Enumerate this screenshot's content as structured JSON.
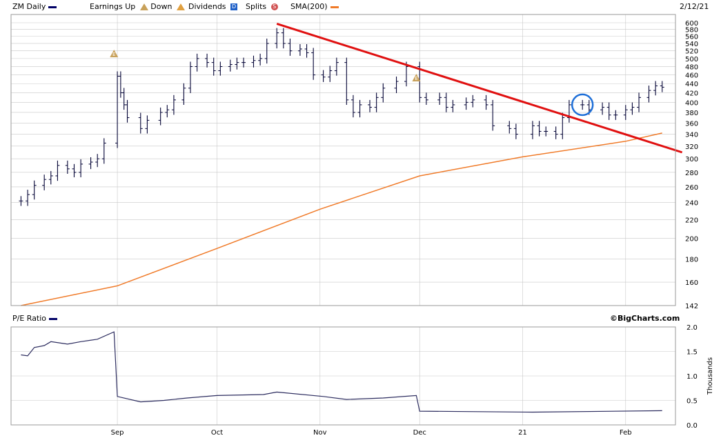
{
  "header": {
    "ticker_label": "ZM Daily",
    "earnings_up_label": "Earnings Up",
    "down_label": "Down",
    "dividends_label": "Dividends",
    "splits_label": "Splits",
    "sma_label": "SMA(200)",
    "date": "2/12/21",
    "earnings_badge": "E",
    "dividend_badge": "D",
    "split_badge": "S"
  },
  "colors": {
    "price_bars": "#000033",
    "sma": "#f07a28",
    "trendline": "#e01010",
    "circle": "#1e6fd8",
    "pe_line": "#2b2b5e",
    "grid": "#c8c8c8",
    "earnings_marker": "#c8a15a"
  },
  "chart_data": [
    {
      "type": "bar",
      "title": "ZM Daily",
      "y_scale": "log",
      "ylim": [
        142,
        600
      ],
      "y_ticks": [
        "600",
        "580",
        "560",
        "540",
        "520",
        "500",
        "480",
        "460",
        "440",
        "420",
        "400",
        "380",
        "360",
        "340",
        "320",
        "300",
        "280",
        "260",
        "240",
        "220",
        "200",
        "180",
        "160",
        "142"
      ],
      "x_ticks": [
        "Sep",
        "Oct",
        "Nov",
        "Dec",
        "21",
        "Feb"
      ],
      "earnings_markers": [
        {
          "date": "2020-08-31",
          "label": "E"
        },
        {
          "date": "2020-11-30",
          "label": "E"
        }
      ],
      "ohlc_close_approx": [
        {
          "date": "2020-08-03",
          "close": 242
        },
        {
          "date": "2020-08-05",
          "close": 250
        },
        {
          "date": "2020-08-07",
          "close": 262
        },
        {
          "date": "2020-08-10",
          "close": 270
        },
        {
          "date": "2020-08-12",
          "close": 275
        },
        {
          "date": "2020-08-14",
          "close": 290
        },
        {
          "date": "2020-08-17",
          "close": 285
        },
        {
          "date": "2020-08-19",
          "close": 280
        },
        {
          "date": "2020-08-21",
          "close": 292
        },
        {
          "date": "2020-08-24",
          "close": 295
        },
        {
          "date": "2020-08-26",
          "close": 300
        },
        {
          "date": "2020-08-28",
          "close": 325
        },
        {
          "date": "2020-09-01",
          "close": 457
        },
        {
          "date": "2020-09-02",
          "close": 420
        },
        {
          "date": "2020-09-03",
          "close": 395
        },
        {
          "date": "2020-09-04",
          "close": 370
        },
        {
          "date": "2020-09-08",
          "close": 350
        },
        {
          "date": "2020-09-10",
          "close": 365
        },
        {
          "date": "2020-09-14",
          "close": 380
        },
        {
          "date": "2020-09-16",
          "close": 385
        },
        {
          "date": "2020-09-18",
          "close": 405
        },
        {
          "date": "2020-09-21",
          "close": 430
        },
        {
          "date": "2020-09-23",
          "close": 480
        },
        {
          "date": "2020-09-25",
          "close": 500
        },
        {
          "date": "2020-09-28",
          "close": 490
        },
        {
          "date": "2020-09-30",
          "close": 470
        },
        {
          "date": "2020-10-02",
          "close": 480
        },
        {
          "date": "2020-10-05",
          "close": 485
        },
        {
          "date": "2020-10-07",
          "close": 490
        },
        {
          "date": "2020-10-09",
          "close": 490
        },
        {
          "date": "2020-10-12",
          "close": 495
        },
        {
          "date": "2020-10-14",
          "close": 500
        },
        {
          "date": "2020-10-16",
          "close": 540
        },
        {
          "date": "2020-10-19",
          "close": 570
        },
        {
          "date": "2020-10-21",
          "close": 540
        },
        {
          "date": "2020-10-23",
          "close": 520
        },
        {
          "date": "2020-10-26",
          "close": 525
        },
        {
          "date": "2020-10-28",
          "close": 515
        },
        {
          "date": "2020-10-30",
          "close": 460
        },
        {
          "date": "2020-11-02",
          "close": 455
        },
        {
          "date": "2020-11-04",
          "close": 470
        },
        {
          "date": "2020-11-06",
          "close": 490
        },
        {
          "date": "2020-11-09",
          "close": 405
        },
        {
          "date": "2020-11-11",
          "close": 380
        },
        {
          "date": "2020-11-13",
          "close": 395
        },
        {
          "date": "2020-11-16",
          "close": 390
        },
        {
          "date": "2020-11-18",
          "close": 410
        },
        {
          "date": "2020-11-20",
          "close": 430
        },
        {
          "date": "2020-11-24",
          "close": 445
        },
        {
          "date": "2020-11-27",
          "close": 480
        },
        {
          "date": "2020-12-01",
          "close": 410
        },
        {
          "date": "2020-12-03",
          "close": 405
        },
        {
          "date": "2020-12-07",
          "close": 410
        },
        {
          "date": "2020-12-09",
          "close": 390
        },
        {
          "date": "2020-12-11",
          "close": 395
        },
        {
          "date": "2020-12-15",
          "close": 400
        },
        {
          "date": "2020-12-17",
          "close": 405
        },
        {
          "date": "2020-12-21",
          "close": 395
        },
        {
          "date": "2020-12-23",
          "close": 355
        },
        {
          "date": "2020-12-28",
          "close": 350
        },
        {
          "date": "2020-12-30",
          "close": 340
        },
        {
          "date": "2021-01-04",
          "close": 355
        },
        {
          "date": "2021-01-06",
          "close": 345
        },
        {
          "date": "2021-01-08",
          "close": 345
        },
        {
          "date": "2021-01-11",
          "close": 340
        },
        {
          "date": "2021-01-13",
          "close": 370
        },
        {
          "date": "2021-01-15",
          "close": 395
        },
        {
          "date": "2021-01-19",
          "close": 395
        },
        {
          "date": "2021-01-21",
          "close": 385
        },
        {
          "date": "2021-01-25",
          "close": 390
        },
        {
          "date": "2021-01-27",
          "close": 375
        },
        {
          "date": "2021-01-29",
          "close": 375
        },
        {
          "date": "2021-02-01",
          "close": 385
        },
        {
          "date": "2021-02-03",
          "close": 390
        },
        {
          "date": "2021-02-05",
          "close": 410
        },
        {
          "date": "2021-02-08",
          "close": 425
        },
        {
          "date": "2021-02-10",
          "close": 435
        },
        {
          "date": "2021-02-12",
          "close": 432
        }
      ],
      "sma200_approx": [
        {
          "date": "2020-08-03",
          "value": 142
        },
        {
          "date": "2020-09-01",
          "value": 157
        },
        {
          "date": "2020-10-01",
          "value": 190
        },
        {
          "date": "2020-11-01",
          "value": 232
        },
        {
          "date": "2020-12-01",
          "value": 275
        },
        {
          "date": "2021-01-01",
          "value": 303
        },
        {
          "date": "2021-02-01",
          "value": 328
        },
        {
          "date": "2021-02-12",
          "value": 342
        }
      ],
      "trendline": [
        {
          "date": "2020-10-19",
          "value": 597
        },
        {
          "date": "2021-02-18",
          "value": 310
        }
      ]
    },
    {
      "type": "line",
      "title": "P/E Ratio",
      "ylabel": "Thousands",
      "ylim": [
        0.0,
        2.0
      ],
      "y_ticks": [
        "2.0",
        "1.5",
        "1.0",
        "0.5",
        "0.0"
      ],
      "x_ticks": [
        "Sep",
        "Oct",
        "Nov",
        "Dec",
        "21",
        "Feb"
      ],
      "points_approx": [
        {
          "date": "2020-08-03",
          "value": 1.43
        },
        {
          "date": "2020-08-05",
          "value": 1.41
        },
        {
          "date": "2020-08-07",
          "value": 1.58
        },
        {
          "date": "2020-08-10",
          "value": 1.62
        },
        {
          "date": "2020-08-12",
          "value": 1.7
        },
        {
          "date": "2020-08-17",
          "value": 1.65
        },
        {
          "date": "2020-08-21",
          "value": 1.7
        },
        {
          "date": "2020-08-26",
          "value": 1.75
        },
        {
          "date": "2020-08-31",
          "value": 1.9
        },
        {
          "date": "2020-09-01",
          "value": 0.58
        },
        {
          "date": "2020-09-08",
          "value": 0.47
        },
        {
          "date": "2020-09-15",
          "value": 0.5
        },
        {
          "date": "2020-09-22",
          "value": 0.55
        },
        {
          "date": "2020-10-01",
          "value": 0.6
        },
        {
          "date": "2020-10-15",
          "value": 0.62
        },
        {
          "date": "2020-10-19",
          "value": 0.67
        },
        {
          "date": "2020-11-02",
          "value": 0.58
        },
        {
          "date": "2020-11-09",
          "value": 0.52
        },
        {
          "date": "2020-11-20",
          "value": 0.55
        },
        {
          "date": "2020-11-30",
          "value": 0.6
        },
        {
          "date": "2020-12-01",
          "value": 0.28
        },
        {
          "date": "2021-01-04",
          "value": 0.26
        },
        {
          "date": "2021-02-12",
          "value": 0.29
        }
      ]
    }
  ],
  "footer": {
    "pe_label": "P/E Ratio",
    "brand": "©BigCharts.com"
  }
}
